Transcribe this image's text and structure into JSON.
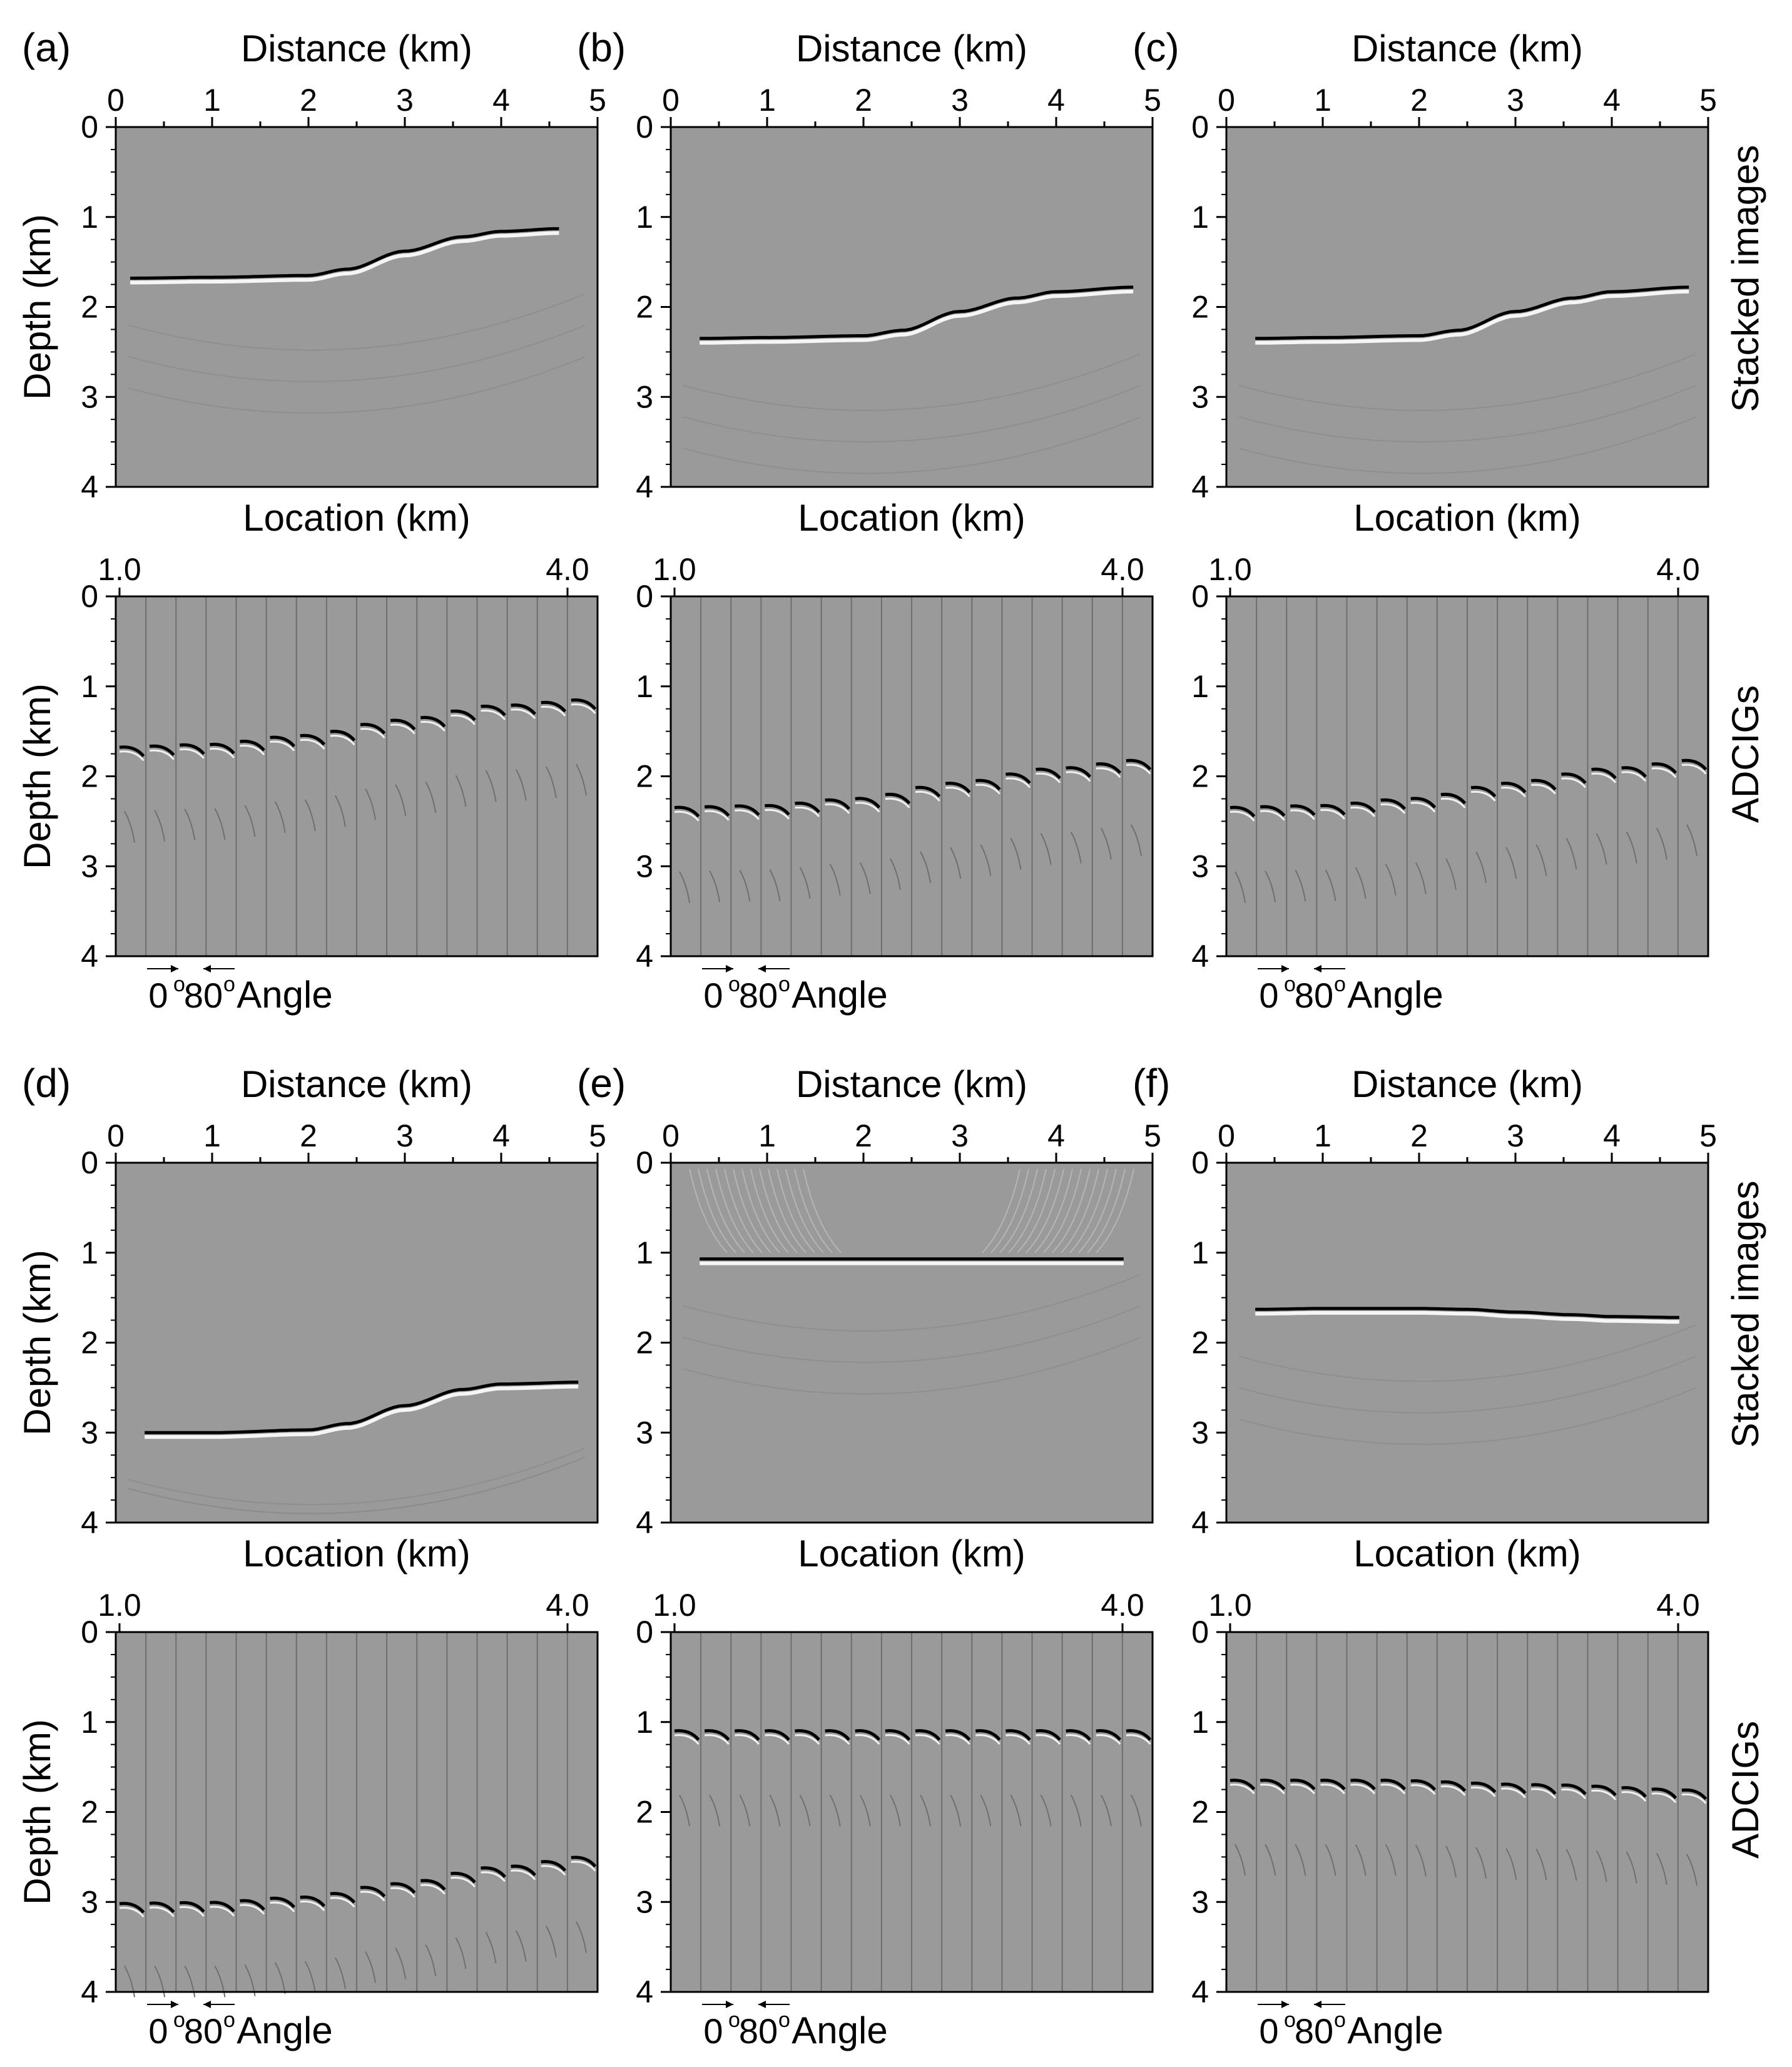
{
  "figure": {
    "row_labels": [
      "Stacked images",
      "ADCIGs"
    ],
    "angle_legend": {
      "start": "0",
      "end": "80",
      "degree": "o",
      "label": "Angle"
    }
  },
  "colors": {
    "background": "#9a9a9a",
    "axis": "#000000",
    "trace_line": "#6e6e6e"
  },
  "chart_data": [
    {
      "panel": "(a)",
      "type": "heatmap",
      "title": "Stacked image",
      "xlabel": "Distance (km)",
      "ylabel": "Depth (km)",
      "xlim": [
        0,
        5
      ],
      "ylim": [
        0,
        4
      ],
      "xticks": [
        "0",
        "1",
        "2",
        "3",
        "4",
        "5"
      ],
      "yticks": [
        "0",
        "1",
        "2",
        "3",
        "4"
      ],
      "reflector": {
        "x": [
          0.15,
          1.0,
          2.0,
          2.4,
          3.0,
          3.6,
          4.0,
          4.6
        ],
        "depth": [
          1.68,
          1.67,
          1.65,
          1.58,
          1.38,
          1.22,
          1.16,
          1.13
        ]
      }
    },
    {
      "panel": "(b)",
      "type": "heatmap",
      "title": "Stacked image",
      "xlabel": "Distance (km)",
      "ylabel": "Depth (km)",
      "xlim": [
        0,
        5
      ],
      "ylim": [
        0,
        4
      ],
      "xticks": [
        "0",
        "1",
        "2",
        "3",
        "4",
        "5"
      ],
      "yticks": [
        "0",
        "1",
        "2",
        "3",
        "4"
      ],
      "reflector": {
        "x": [
          0.3,
          1.0,
          2.0,
          2.4,
          3.0,
          3.6,
          4.0,
          4.8
        ],
        "depth": [
          2.35,
          2.34,
          2.32,
          2.26,
          2.05,
          1.9,
          1.83,
          1.78
        ]
      }
    },
    {
      "panel": "(c)",
      "type": "heatmap",
      "title": "Stacked image",
      "xlabel": "Distance (km)",
      "ylabel": "Depth (km)",
      "xlim": [
        0,
        5
      ],
      "ylim": [
        0,
        4
      ],
      "xticks": [
        "0",
        "1",
        "2",
        "3",
        "4",
        "5"
      ],
      "yticks": [
        "0",
        "1",
        "2",
        "3",
        "4"
      ],
      "reflector": {
        "x": [
          0.3,
          1.0,
          2.0,
          2.4,
          3.0,
          3.6,
          4.0,
          4.8
        ],
        "depth": [
          2.35,
          2.34,
          2.32,
          2.26,
          2.05,
          1.9,
          1.83,
          1.78
        ]
      }
    },
    {
      "panel": "(a)",
      "type": "heatmap",
      "title": "ADCIGs",
      "xlabel": "Location (km)",
      "ylabel": "Depth (km)",
      "xlim": [
        1.0,
        4.0
      ],
      "ylim": [
        0,
        4
      ],
      "xticks": [
        "1.0",
        "4.0"
      ],
      "yticks": [
        "0",
        "1",
        "2",
        "3",
        "4"
      ],
      "gathers": 16,
      "reflector": {
        "x": [
          1.0,
          1.6,
          2.2,
          2.8,
          3.4,
          4.0
        ],
        "depth": [
          1.68,
          1.65,
          1.55,
          1.38,
          1.22,
          1.15
        ]
      }
    },
    {
      "panel": "(b)",
      "type": "heatmap",
      "title": "ADCIGs",
      "xlabel": "Location (km)",
      "ylabel": "Depth (km)",
      "xlim": [
        1.0,
        4.0
      ],
      "ylim": [
        0,
        4
      ],
      "xticks": [
        "1.0",
        "4.0"
      ],
      "yticks": [
        "0",
        "1",
        "2",
        "3",
        "4"
      ],
      "gathers": 16,
      "reflector": {
        "x": [
          1.0,
          1.6,
          2.2,
          2.8,
          3.4,
          4.0
        ],
        "depth": [
          2.35,
          2.33,
          2.25,
          2.08,
          1.92,
          1.82
        ]
      }
    },
    {
      "panel": "(c)",
      "type": "heatmap",
      "title": "ADCIGs",
      "xlabel": "Location (km)",
      "ylabel": "Depth (km)",
      "xlim": [
        1.0,
        4.0
      ],
      "ylim": [
        0,
        4
      ],
      "xticks": [
        "1.0",
        "4.0"
      ],
      "yticks": [
        "0",
        "1",
        "2",
        "3",
        "4"
      ],
      "gathers": 16,
      "reflector": {
        "x": [
          1.0,
          1.6,
          2.2,
          2.8,
          3.4,
          4.0
        ],
        "depth": [
          2.35,
          2.33,
          2.25,
          2.08,
          1.92,
          1.82
        ]
      }
    },
    {
      "panel": "(d)",
      "type": "heatmap",
      "title": "Stacked image",
      "xlabel": "Distance (km)",
      "ylabel": "Depth (km)",
      "xlim": [
        0,
        5
      ],
      "ylim": [
        0,
        4
      ],
      "xticks": [
        "0",
        "1",
        "2",
        "3",
        "4",
        "5"
      ],
      "yticks": [
        "0",
        "1",
        "2",
        "3",
        "4"
      ],
      "reflector": {
        "x": [
          0.3,
          1.0,
          2.0,
          2.4,
          3.0,
          3.6,
          4.0,
          4.8
        ],
        "depth": [
          3.0,
          3.0,
          2.97,
          2.9,
          2.7,
          2.52,
          2.46,
          2.44
        ]
      }
    },
    {
      "panel": "(e)",
      "type": "heatmap",
      "title": "Stacked image",
      "xlabel": "Distance (km)",
      "ylabel": "Depth (km)",
      "xlim": [
        0,
        5
      ],
      "ylim": [
        0,
        4
      ],
      "xticks": [
        "0",
        "1",
        "2",
        "3",
        "4",
        "5"
      ],
      "yticks": [
        "0",
        "1",
        "2",
        "3",
        "4"
      ],
      "reflector": {
        "x": [
          0.3,
          2.5,
          4.7
        ],
        "depth": [
          1.07,
          1.07,
          1.07
        ]
      }
    },
    {
      "panel": "(f)",
      "type": "heatmap",
      "title": "Stacked image",
      "xlabel": "Distance (km)",
      "ylabel": "Depth (km)",
      "xlim": [
        0,
        5
      ],
      "ylim": [
        0,
        4
      ],
      "xticks": [
        "0",
        "1",
        "2",
        "3",
        "4",
        "5"
      ],
      "yticks": [
        "0",
        "1",
        "2",
        "3",
        "4"
      ],
      "reflector": {
        "x": [
          0.3,
          1.0,
          2.0,
          2.5,
          3.0,
          3.6,
          4.0,
          4.7
        ],
        "depth": [
          1.63,
          1.62,
          1.62,
          1.63,
          1.66,
          1.69,
          1.71,
          1.72
        ]
      }
    },
    {
      "panel": "(d)",
      "type": "heatmap",
      "title": "ADCIGs",
      "xlabel": "Location (km)",
      "ylabel": "Depth (km)",
      "xlim": [
        1.0,
        4.0
      ],
      "ylim": [
        0,
        4
      ],
      "xticks": [
        "1.0",
        "4.0"
      ],
      "yticks": [
        "0",
        "1",
        "2",
        "3",
        "4"
      ],
      "gathers": 16,
      "reflector": {
        "x": [
          1.0,
          1.6,
          2.2,
          2.8,
          3.4,
          4.0
        ],
        "depth": [
          3.02,
          3.01,
          2.95,
          2.8,
          2.62,
          2.5
        ]
      }
    },
    {
      "panel": "(e)",
      "type": "heatmap",
      "title": "ADCIGs",
      "xlabel": "Location (km)",
      "ylabel": "Depth (km)",
      "xlim": [
        1.0,
        4.0
      ],
      "ylim": [
        0,
        4
      ],
      "xticks": [
        "1.0",
        "4.0"
      ],
      "yticks": [
        "0",
        "1",
        "2",
        "3",
        "4"
      ],
      "gathers": 16,
      "reflector": {
        "x": [
          1.0,
          4.0
        ],
        "depth": [
          1.1,
          1.1
        ]
      }
    },
    {
      "panel": "(f)",
      "type": "heatmap",
      "title": "ADCIGs",
      "xlabel": "Location (km)",
      "ylabel": "Depth (km)",
      "xlim": [
        1.0,
        4.0
      ],
      "ylim": [
        0,
        4
      ],
      "xticks": [
        "1.0",
        "4.0"
      ],
      "yticks": [
        "0",
        "1",
        "2",
        "3",
        "4"
      ],
      "gathers": 16,
      "reflector": {
        "x": [
          1.0,
          2.0,
          3.0,
          4.0
        ],
        "depth": [
          1.65,
          1.65,
          1.7,
          1.76
        ]
      }
    }
  ]
}
